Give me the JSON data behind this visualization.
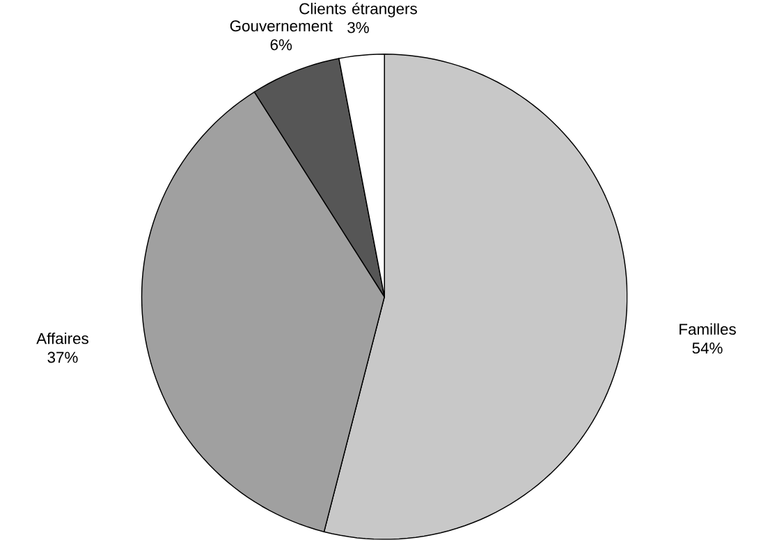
{
  "chart_data": {
    "type": "pie",
    "categories": [
      "Familles",
      "Affaires",
      "Gouvernement",
      "Clients étrangers"
    ],
    "values": [
      54,
      37,
      6,
      3
    ],
    "colors": [
      "#c8c8c8",
      "#a0a0a0",
      "#565656",
      "#ffffff"
    ],
    "value_labels": [
      "54%",
      "37%",
      "6%",
      "3%"
    ]
  }
}
